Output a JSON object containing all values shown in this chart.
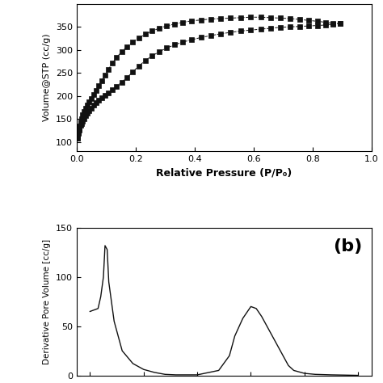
{
  "panel_a": {
    "xlabel": "Relative Pressure (P/P₀)",
    "ylabel": "Volume@STP (cc/g)",
    "ylim": [
      80,
      400
    ],
    "xlim": [
      0.0,
      1.0
    ],
    "yticks": [
      100,
      150,
      200,
      250,
      300,
      350
    ],
    "xticks": [
      0.0,
      0.2,
      0.4,
      0.6,
      0.8,
      1.0
    ],
    "adsorption_x": [
      0.002,
      0.004,
      0.006,
      0.008,
      0.01,
      0.013,
      0.016,
      0.02,
      0.025,
      0.03,
      0.036,
      0.043,
      0.05,
      0.058,
      0.066,
      0.075,
      0.085,
      0.096,
      0.108,
      0.121,
      0.136,
      0.153,
      0.171,
      0.19,
      0.211,
      0.233,
      0.256,
      0.28,
      0.305,
      0.332,
      0.36,
      0.39,
      0.422,
      0.455,
      0.488,
      0.522,
      0.556,
      0.59,
      0.624,
      0.658,
      0.692,
      0.725,
      0.757,
      0.788,
      0.817,
      0.844,
      0.869,
      0.893
    ],
    "adsorption_y": [
      108,
      116,
      121,
      126,
      131,
      136,
      140,
      145,
      151,
      157,
      163,
      168,
      174,
      180,
      186,
      191,
      196,
      201,
      207,
      214,
      221,
      230,
      240,
      252,
      265,
      277,
      287,
      296,
      304,
      311,
      317,
      322,
      327,
      331,
      335,
      338,
      341,
      343,
      345,
      347,
      349,
      350,
      351,
      352,
      353,
      354,
      356,
      357
    ],
    "desorption_x": [
      0.893,
      0.869,
      0.844,
      0.817,
      0.788,
      0.757,
      0.725,
      0.692,
      0.658,
      0.624,
      0.59,
      0.556,
      0.522,
      0.488,
      0.455,
      0.422,
      0.39,
      0.36,
      0.332,
      0.305,
      0.28,
      0.256,
      0.233,
      0.211,
      0.19,
      0.171,
      0.153,
      0.136,
      0.121,
      0.108,
      0.096,
      0.085,
      0.075,
      0.066,
      0.058,
      0.05,
      0.043,
      0.036,
      0.03,
      0.025,
      0.02,
      0.016,
      0.013,
      0.01,
      0.008,
      0.006,
      0.004,
      0.002
    ],
    "desorption_y": [
      357,
      358,
      360,
      362,
      364,
      366,
      368,
      369,
      370,
      371,
      371,
      370,
      369,
      368,
      367,
      365,
      363,
      360,
      356,
      352,
      347,
      341,
      334,
      326,
      317,
      307,
      296,
      284,
      271,
      258,
      245,
      233,
      222,
      212,
      203,
      195,
      188,
      181,
      174,
      167,
      159,
      151,
      143,
      135,
      127,
      119,
      113,
      108
    ],
    "marker": "s",
    "markersize": 4,
    "color": "#111111",
    "linestyle": "--"
  },
  "panel_b": {
    "title": "(b)",
    "ylabel": "Derivative Pore Volume [cc/g]",
    "ylim": [
      0,
      150
    ],
    "yticks": [
      0,
      50,
      100,
      150
    ],
    "color": "#111111",
    "pore_x": [
      0.0,
      1.5,
      2.0,
      2.5,
      2.8,
      3.2,
      3.5,
      4.5,
      6.0,
      8.0,
      10.0,
      12.0,
      14.0,
      16.0,
      20.0,
      24.0,
      26.0,
      27.0,
      28.5,
      30.0,
      31.0,
      32.0,
      33.0,
      34.0,
      35.0,
      36.0,
      37.0,
      38.0,
      40.0,
      42.0,
      45.0,
      50.0
    ],
    "pore_y": [
      65,
      68,
      80,
      100,
      132,
      128,
      95,
      55,
      25,
      12,
      6,
      3,
      1,
      0.5,
      0.5,
      5,
      20,
      40,
      58,
      70,
      68,
      60,
      50,
      40,
      30,
      20,
      10,
      5,
      2,
      1,
      0.5,
      0
    ]
  },
  "background_color": "#ffffff"
}
